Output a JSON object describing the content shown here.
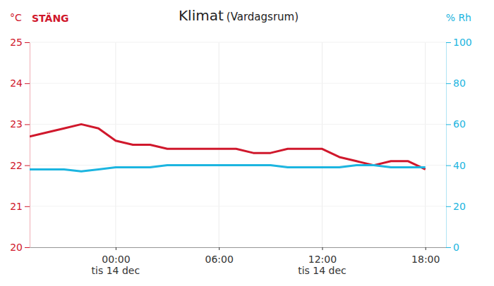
{
  "chart_data": {
    "type": "line",
    "title": "Klimat",
    "subtitle": "(Vardagsrum)",
    "y_label": "°C",
    "y2_label": "% Rh",
    "button": "STÄNG",
    "x": [
      -5,
      -4,
      -3,
      -2,
      -1,
      0,
      1,
      2,
      3,
      4,
      5,
      6,
      7,
      8,
      9,
      10,
      11,
      12,
      13,
      14,
      15,
      16,
      17,
      18
    ],
    "xlim": [
      -5,
      19.2
    ],
    "xticks": [
      {
        "value": 0,
        "label": "00:00"
      },
      {
        "value": 6,
        "label": "06:00"
      },
      {
        "value": 12,
        "label": "12:00"
      },
      {
        "value": 18,
        "label": "18:00"
      }
    ],
    "x_sublabels": [
      {
        "value": 0,
        "label": "tis 14 dec"
      },
      {
        "value": 12,
        "label": "tis 14 dec"
      }
    ],
    "ylim": [
      20,
      25
    ],
    "yticks": [
      20,
      21,
      22,
      23,
      24,
      25
    ],
    "y2lim": [
      0,
      100
    ],
    "y2ticks": [
      0,
      20,
      40,
      60,
      80,
      100
    ],
    "grid": true,
    "series": [
      {
        "color": "#d0182c",
        "values": [
          22.7,
          22.8,
          22.9,
          23.0,
          22.9,
          22.6,
          22.5,
          22.5,
          22.4,
          22.4,
          22.4,
          22.4,
          22.4,
          22.3,
          22.3,
          22.4,
          22.4,
          22.4,
          22.2,
          22.1,
          22.0,
          22.1,
          22.1,
          21.9
        ]
      },
      {
        "color": "#1cb5e0",
        "axis": "y2",
        "values": [
          38,
          38,
          38,
          37,
          38,
          39,
          39,
          39,
          40,
          40,
          40,
          40,
          40,
          40,
          40,
          39,
          39,
          39,
          39,
          40,
          40,
          39,
          39,
          39
        ]
      }
    ]
  }
}
